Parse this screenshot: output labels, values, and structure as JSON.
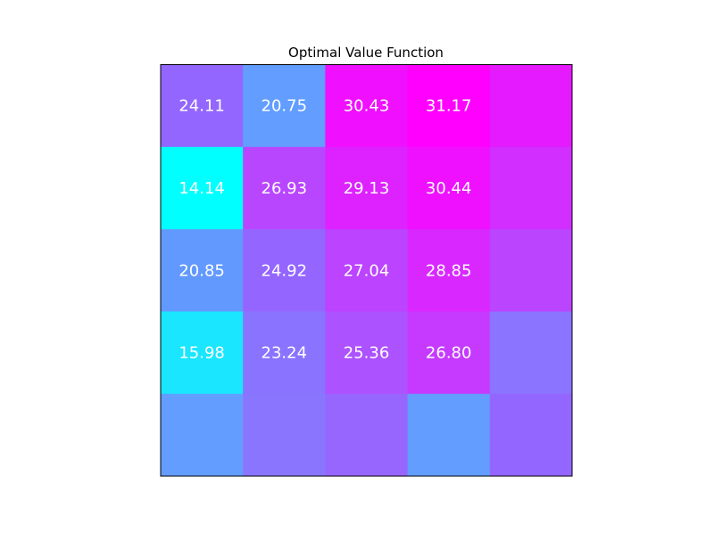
{
  "chart_data": {
    "type": "heatmap",
    "title": "Optimal Value Function",
    "xlabel": "",
    "ylabel": "",
    "grid": false,
    "colormap": "cool",
    "colors": {
      "low": "#00ffff",
      "high": "#ff00ff",
      "label_text": "#ffffff",
      "frame": "#000000"
    },
    "rows": 5,
    "cols": 5,
    "values": [
      [
        24.11,
        20.75,
        30.43,
        31.17,
        null
      ],
      [
        14.14,
        26.93,
        29.13,
        30.44,
        null
      ],
      [
        20.85,
        24.92,
        27.04,
        28.85,
        null
      ],
      [
        15.98,
        23.24,
        25.36,
        26.8,
        null
      ],
      [
        null,
        null,
        null,
        null,
        null
      ]
    ],
    "labels": [
      [
        "24.11",
        "20.75",
        "30.43",
        "31.17",
        ""
      ],
      [
        "14.14",
        "26.93",
        "29.13",
        "30.44",
        ""
      ],
      [
        "20.85",
        "24.92",
        "27.04",
        "28.85",
        ""
      ],
      [
        "15.98",
        "23.24",
        "25.36",
        "26.80",
        ""
      ],
      [
        "",
        "",
        "",
        "",
        ""
      ]
    ],
    "cell_colors": [
      [
        "#9366ff",
        "#629dff",
        "#f00fff",
        "#ff00ff",
        "#e51aff"
      ],
      [
        "#00ffff",
        "#b946ff",
        "#dd22ff",
        "#ef10ff",
        "#d12eff"
      ],
      [
        "#6299ff",
        "#9466ff",
        "#bc43ff",
        "#d928ff",
        "#bb44ff"
      ],
      [
        "#1ae6ff",
        "#8973ff",
        "#ad52ff",
        "#c63aff",
        "#8b74ff"
      ],
      [
        "#629dff",
        "#8a75ff",
        "#9766ff",
        "#629dff",
        "#9366ff"
      ]
    ]
  }
}
